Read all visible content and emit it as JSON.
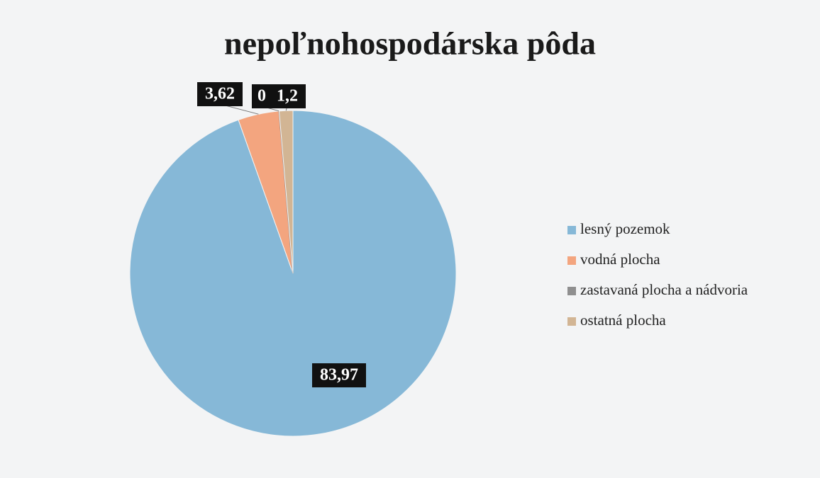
{
  "chart_data": {
    "type": "pie",
    "title": "nepoľnohospodárska pôda",
    "categories": [
      "lesný pozemok",
      "vodná plocha",
      "zastavaná plocha a nádvoria",
      "ostatná plocha"
    ],
    "values": [
      83.97,
      3.62,
      0,
      1.2
    ],
    "value_labels": [
      "83,97",
      "3,62",
      "0",
      "1,2"
    ],
    "colors": [
      "#86b8d7",
      "#f3a57f",
      "#8f8f8f",
      "#d2b594"
    ],
    "legend": "right"
  }
}
